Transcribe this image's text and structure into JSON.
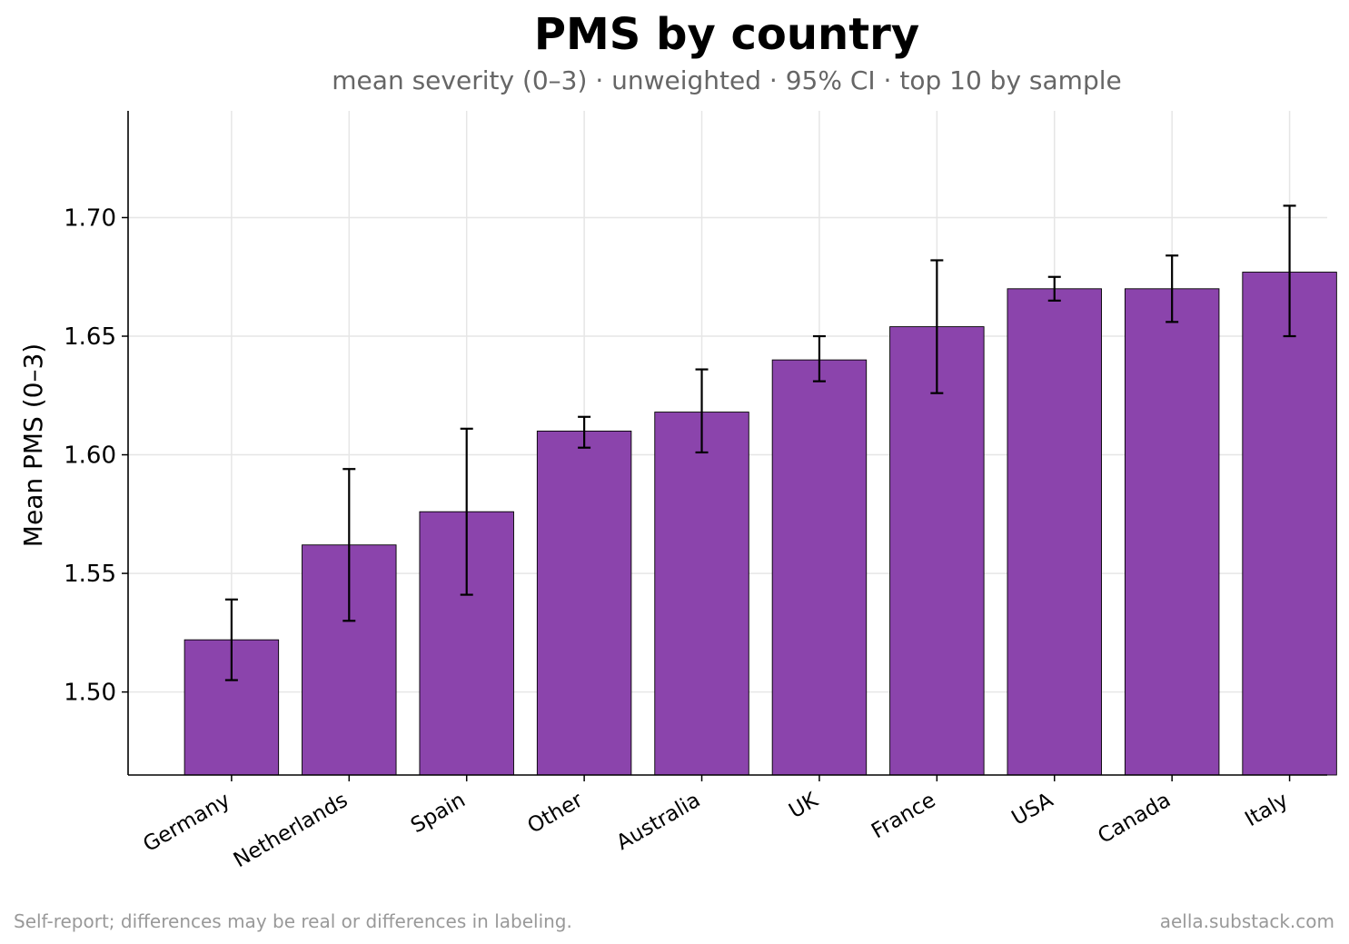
{
  "chart_data": {
    "type": "bar",
    "title": "PMS by country",
    "subtitle": "mean severity (0–3) · unweighted · 95% CI · top 10 by sample",
    "xlabel": "",
    "ylabel": "Mean PMS (0–3)",
    "ylim": [
      1.465,
      1.745
    ],
    "yticks": [
      1.5,
      1.55,
      1.6,
      1.65,
      1.7
    ],
    "ytick_labels": [
      "1.50",
      "1.55",
      "1.60",
      "1.65",
      "1.70"
    ],
    "grid": true,
    "bar_color": "#8b44ac",
    "categories": [
      "Germany",
      "Netherlands",
      "Spain",
      "Other",
      "Australia",
      "UK",
      "France",
      "USA",
      "Canada",
      "Italy"
    ],
    "values": [
      1.522,
      1.562,
      1.576,
      1.61,
      1.618,
      1.64,
      1.654,
      1.67,
      1.67,
      1.677
    ],
    "ci_low": [
      1.505,
      1.53,
      1.541,
      1.603,
      1.601,
      1.631,
      1.626,
      1.665,
      1.656,
      1.65
    ],
    "ci_high": [
      1.539,
      1.594,
      1.611,
      1.616,
      1.636,
      1.65,
      1.682,
      1.675,
      1.684,
      1.705
    ]
  },
  "footnote_left": "Self-report; differences may be real or differences in labeling.",
  "footnote_right": "aella.substack.com"
}
